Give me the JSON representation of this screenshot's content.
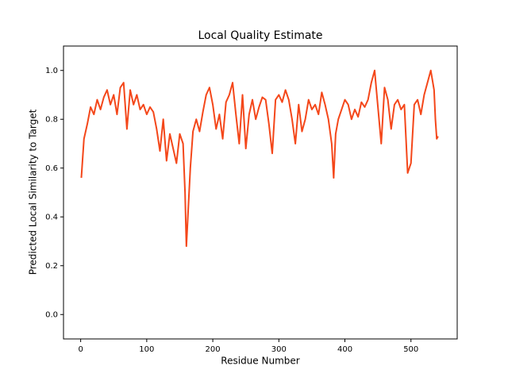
{
  "chart_data": {
    "type": "line",
    "title": "Local Quality Estimate",
    "x_label": "Residue Number",
    "y_label": "Predicted Local Similarity to Target",
    "xlim": [
      -26,
      570
    ],
    "ylim": [
      -0.1,
      1.1
    ],
    "xticks": [
      0,
      100,
      200,
      300,
      400,
      500
    ],
    "yticks": [
      {
        "value": 0,
        "label": "0.0"
      },
      {
        "value": 0.2,
        "label": "0.2"
      },
      {
        "value": 0.4,
        "label": "0.4"
      },
      {
        "value": 0.6,
        "label": "0.6"
      },
      {
        "value": 0.8,
        "label": "0.8"
      },
      {
        "value": 1,
        "label": "1.0"
      }
    ],
    "grid": false,
    "series": [
      {
        "color": "#f4471a",
        "x": [
          1,
          5,
          10,
          15,
          20,
          25,
          30,
          35,
          40,
          45,
          50,
          55,
          60,
          65,
          70,
          75,
          80,
          85,
          90,
          95,
          100,
          105,
          110,
          115,
          120,
          125,
          130,
          135,
          140,
          145,
          150,
          155,
          158,
          160,
          163,
          166,
          170,
          175,
          180,
          185,
          190,
          195,
          200,
          205,
          210,
          215,
          220,
          225,
          230,
          235,
          240,
          245,
          250,
          255,
          260,
          265,
          270,
          275,
          280,
          285,
          290,
          295,
          300,
          305,
          310,
          315,
          320,
          325,
          330,
          335,
          340,
          345,
          350,
          355,
          360,
          365,
          370,
          375,
          380,
          383,
          386,
          390,
          395,
          400,
          405,
          410,
          415,
          420,
          425,
          430,
          435,
          440,
          445,
          450,
          455,
          460,
          465,
          470,
          475,
          480,
          485,
          490,
          495,
          500,
          505,
          510,
          515,
          520,
          525,
          530,
          535,
          537,
          539,
          541
        ],
        "values": [
          0.56,
          0.72,
          0.78,
          0.85,
          0.82,
          0.88,
          0.84,
          0.89,
          0.92,
          0.86,
          0.9,
          0.82,
          0.93,
          0.95,
          0.76,
          0.92,
          0.86,
          0.9,
          0.84,
          0.86,
          0.82,
          0.85,
          0.83,
          0.76,
          0.67,
          0.8,
          0.63,
          0.74,
          0.68,
          0.62,
          0.74,
          0.7,
          0.5,
          0.28,
          0.44,
          0.6,
          0.75,
          0.8,
          0.75,
          0.83,
          0.9,
          0.93,
          0.86,
          0.76,
          0.82,
          0.72,
          0.87,
          0.9,
          0.95,
          0.82,
          0.7,
          0.9,
          0.68,
          0.82,
          0.88,
          0.8,
          0.85,
          0.89,
          0.88,
          0.78,
          0.66,
          0.88,
          0.9,
          0.87,
          0.92,
          0.88,
          0.8,
          0.7,
          0.86,
          0.75,
          0.8,
          0.88,
          0.84,
          0.86,
          0.82,
          0.91,
          0.86,
          0.8,
          0.7,
          0.56,
          0.74,
          0.8,
          0.84,
          0.88,
          0.86,
          0.8,
          0.84,
          0.81,
          0.87,
          0.85,
          0.88,
          0.95,
          1.0,
          0.85,
          0.7,
          0.93,
          0.88,
          0.76,
          0.86,
          0.88,
          0.84,
          0.86,
          0.58,
          0.62,
          0.86,
          0.88,
          0.82,
          0.9,
          0.95,
          1.0,
          0.92,
          0.8,
          0.72,
          0.73
        ]
      }
    ]
  }
}
